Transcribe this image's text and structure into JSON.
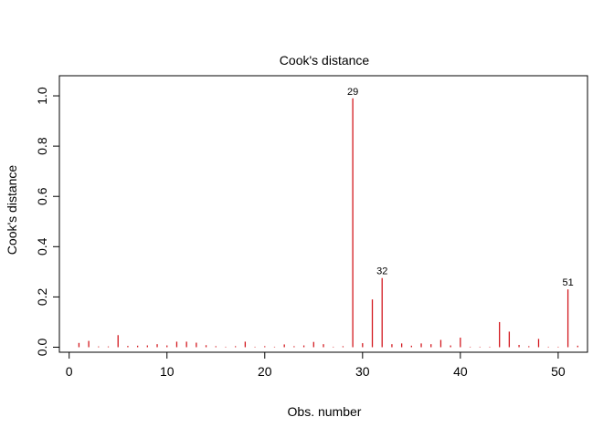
{
  "chart_data": {
    "type": "bar",
    "title": "Cook's distance",
    "xlabel": "Obs. number",
    "ylabel": "Cook's distance",
    "xlim": [
      -1,
      53
    ],
    "ylim": [
      -0.02,
      1.08
    ],
    "xticks": [
      "0",
      "10",
      "20",
      "30",
      "40",
      "50"
    ],
    "yticks": [
      "0.0",
      "0.2",
      "0.4",
      "0.6",
      "0.8",
      "1.0"
    ],
    "x": [
      1,
      2,
      3,
      4,
      5,
      6,
      7,
      8,
      9,
      10,
      11,
      12,
      13,
      14,
      15,
      16,
      17,
      18,
      19,
      20,
      21,
      22,
      23,
      24,
      25,
      26,
      27,
      28,
      29,
      30,
      31,
      32,
      33,
      34,
      35,
      36,
      37,
      38,
      39,
      40,
      41,
      42,
      43,
      44,
      45,
      46,
      47,
      48,
      49,
      50,
      51,
      52
    ],
    "values": [
      0.017,
      0.025,
      0.003,
      0.003,
      0.048,
      0.005,
      0.006,
      0.007,
      0.012,
      0.007,
      0.022,
      0.022,
      0.018,
      0.008,
      0.004,
      0.002,
      0.004,
      0.022,
      0.002,
      0.004,
      0.002,
      0.011,
      0.004,
      0.007,
      0.021,
      0.012,
      0.002,
      0.004,
      0.99,
      0.016,
      0.19,
      0.275,
      0.012,
      0.015,
      0.006,
      0.015,
      0.012,
      0.029,
      0.007,
      0.038,
      0.002,
      0.002,
      0.002,
      0.1,
      0.062,
      0.009,
      0.004,
      0.033,
      0.002,
      0.002,
      0.23,
      0.006
    ],
    "labeled_points": [
      {
        "x": 29,
        "value": 0.99,
        "label": "29"
      },
      {
        "x": 32,
        "value": 0.275,
        "label": "32"
      },
      {
        "x": 51,
        "value": 0.23,
        "label": "51"
      }
    ],
    "bar_color": "#d3191f",
    "grid": false,
    "legend": "none"
  }
}
